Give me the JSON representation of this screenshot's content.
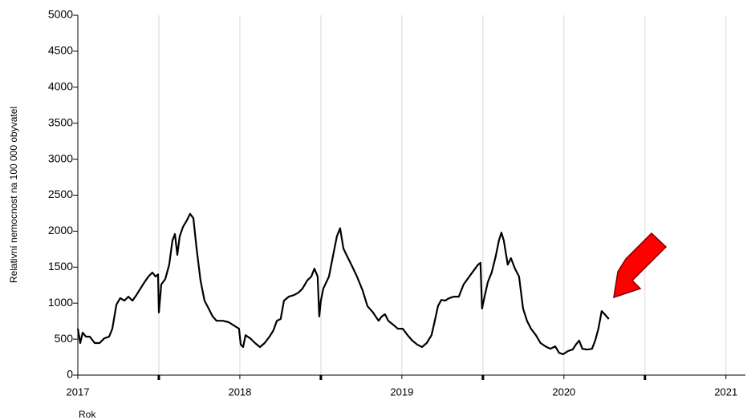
{
  "chart_data": {
    "type": "line",
    "y_label": "Relativní nemocnost na 100 000 obyvatel",
    "x_label": "Rok",
    "xlim": [
      2017,
      2021.12
    ],
    "xticks": [
      2017,
      2018,
      2019,
      2020,
      2021
    ],
    "xminorticks": [
      2017.5,
      2018.5,
      2019.5,
      2020.5
    ],
    "ylim": [
      0,
      5000
    ],
    "yticks": [
      0,
      500,
      1000,
      1500,
      2000,
      2500,
      3000,
      3500,
      4000,
      4500,
      5000
    ],
    "grid": true,
    "color": "#000000",
    "x": [
      2017.0,
      2017.015,
      2017.03,
      2017.05,
      2017.074,
      2017.104,
      2017.134,
      2017.163,
      2017.193,
      2017.213,
      2017.238,
      2017.262,
      2017.287,
      2017.312,
      2017.337,
      2017.361,
      2017.386,
      2017.411,
      2017.436,
      2017.46,
      2017.48,
      2017.495,
      2017.5,
      2017.515,
      2017.54,
      2017.564,
      2017.584,
      2017.599,
      2017.614,
      2017.629,
      2017.649,
      2017.673,
      2017.693,
      2017.713,
      2017.733,
      2017.757,
      2017.782,
      2017.807,
      2017.832,
      2017.856,
      2017.896,
      2017.931,
      2017.955,
      2017.995,
      2018.005,
      2018.02,
      2018.035,
      2018.064,
      2018.094,
      2018.124,
      2018.153,
      2018.183,
      2018.208,
      2018.228,
      2018.252,
      2018.272,
      2018.302,
      2018.332,
      2018.361,
      2018.386,
      2018.416,
      2018.441,
      2018.46,
      2018.48,
      2018.49,
      2018.5,
      2018.515,
      2018.55,
      2018.574,
      2018.599,
      2018.619,
      2018.639,
      2018.658,
      2018.688,
      2018.723,
      2018.757,
      2018.787,
      2018.822,
      2018.856,
      2018.876,
      2018.896,
      2018.916,
      2018.946,
      2018.975,
      2019.005,
      2019.035,
      2019.064,
      2019.094,
      2019.124,
      2019.153,
      2019.183,
      2019.203,
      2019.223,
      2019.243,
      2019.267,
      2019.292,
      2019.322,
      2019.351,
      2019.381,
      2019.416,
      2019.441,
      2019.47,
      2019.485,
      2019.495,
      2019.51,
      2019.53,
      2019.554,
      2019.579,
      2019.599,
      2019.614,
      2019.629,
      2019.653,
      2019.673,
      2019.698,
      2019.723,
      2019.748,
      2019.772,
      2019.797,
      2019.827,
      2019.856,
      2019.886,
      2019.916,
      2019.946,
      2019.97,
      2019.995,
      2020.025,
      2020.054,
      2020.074,
      2020.094,
      2020.114,
      2020.144,
      2020.173,
      2020.193,
      2020.213,
      2020.233,
      2020.252,
      2020.277
    ],
    "values": [
      645,
      445,
      590,
      535,
      535,
      445,
      445,
      510,
      535,
      645,
      980,
      1070,
      1035,
      1090,
      1035,
      1110,
      1200,
      1290,
      1370,
      1425,
      1370,
      1400,
      870,
      1260,
      1335,
      1535,
      1870,
      1960,
      1670,
      1930,
      2060,
      2150,
      2240,
      2180,
      1760,
      1315,
      1035,
      925,
      815,
      755,
      755,
      735,
      700,
      645,
      425,
      390,
      555,
      510,
      445,
      390,
      445,
      535,
      625,
      755,
      780,
      1035,
      1090,
      1110,
      1145,
      1200,
      1315,
      1370,
      1480,
      1370,
      815,
      1035,
      1200,
      1370,
      1650,
      1930,
      2040,
      1760,
      1670,
      1535,
      1370,
      1180,
      960,
      870,
      755,
      815,
      845,
      755,
      700,
      645,
      645,
      555,
      480,
      425,
      390,
      445,
      555,
      755,
      960,
      1045,
      1035,
      1070,
      1090,
      1090,
      1260,
      1370,
      1445,
      1535,
      1560,
      925,
      1090,
      1290,
      1425,
      1650,
      1870,
      1980,
      1870,
      1535,
      1625,
      1480,
      1370,
      925,
      755,
      645,
      555,
      445,
      400,
      365,
      400,
      310,
      290,
      335,
      355,
      425,
      480,
      365,
      355,
      365,
      480,
      645,
      890,
      845,
      780
    ]
  }
}
